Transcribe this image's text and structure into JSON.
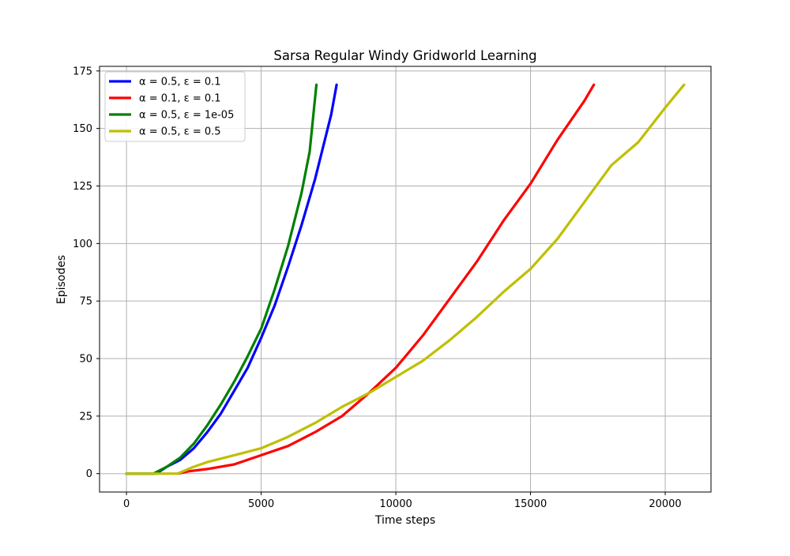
{
  "chart_data": {
    "type": "line",
    "title": "Sarsa Regular Windy Gridworld Learning",
    "xlabel": "Time steps",
    "ylabel": "Episodes",
    "xlim": [
      -1000,
      21700
    ],
    "ylim": [
      -8,
      177
    ],
    "xticks": [
      0,
      5000,
      10000,
      15000,
      20000
    ],
    "yticks": [
      0,
      25,
      50,
      75,
      100,
      125,
      150,
      175
    ],
    "grid": true,
    "legend_position": "upper-left",
    "series": [
      {
        "name": "α = 0.5, ε = 0.1",
        "color": "#0000ff",
        "x": [
          0,
          1100,
          1500,
          2000,
          2500,
          3000,
          3500,
          4000,
          4500,
          5000,
          5500,
          6000,
          6500,
          7000,
          7300,
          7600,
          7800
        ],
        "y": [
          0,
          0,
          3,
          6,
          11,
          18,
          26,
          36,
          46,
          59,
          73,
          90,
          108,
          128,
          142,
          156,
          169
        ]
      },
      {
        "name": "α = 0.1, ε = 0.1",
        "color": "#ff0000",
        "x": [
          1900,
          2300,
          3000,
          4000,
          5000,
          6000,
          7000,
          8000,
          9000,
          10000,
          11000,
          12000,
          13000,
          14000,
          15000,
          16000,
          17000,
          17350
        ],
        "y": [
          0,
          1,
          2,
          4,
          8,
          12,
          18,
          25,
          35,
          46,
          60,
          76,
          92,
          110,
          126,
          145,
          162,
          169
        ]
      },
      {
        "name": "α = 0.5, ε = 1e-05",
        "color": "#008000",
        "x": [
          0,
          1000,
          1500,
          2000,
          2500,
          3000,
          3500,
          4000,
          4500,
          5000,
          5500,
          6000,
          6500,
          6800,
          7050
        ],
        "y": [
          0,
          0,
          3,
          7,
          13,
          21,
          30,
          40,
          51,
          63,
          80,
          99,
          122,
          140,
          169
        ]
      },
      {
        "name": "α = 0.5, ε = 0.5",
        "color": "#bfbf00",
        "x": [
          0,
          1900,
          2500,
          3000,
          4000,
          5000,
          6000,
          7000,
          8000,
          9000,
          10000,
          11000,
          12000,
          13000,
          14000,
          15000,
          16000,
          17000,
          18000,
          19000,
          20000,
          20700
        ],
        "y": [
          0,
          0,
          3,
          5,
          8,
          11,
          16,
          22,
          29,
          35,
          42,
          49,
          58,
          68,
          79,
          89,
          102,
          118,
          134,
          144,
          159,
          169
        ]
      }
    ]
  }
}
